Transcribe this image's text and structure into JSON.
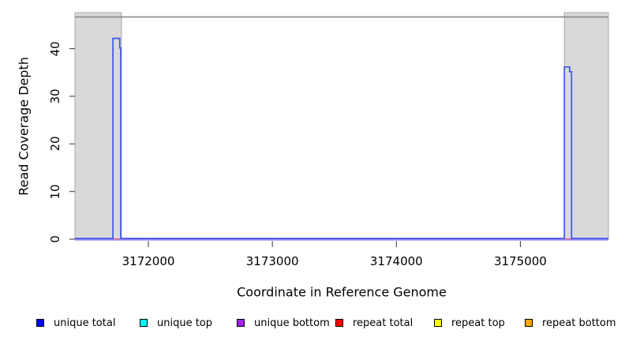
{
  "chart_data": {
    "type": "line",
    "title": "",
    "xlabel": "Coordinate in Reference Genome",
    "ylabel": "Read Coverage Depth",
    "xlim": [
      3171408,
      3175710
    ],
    "ylim": [
      0,
      47
    ],
    "xticks": [
      "3172000",
      "3173000",
      "3174000",
      "3175000"
    ],
    "xtick_values": [
      3172000,
      3173000,
      3174000,
      3175000
    ],
    "yticks": [
      "0",
      "10",
      "20",
      "30",
      "40"
    ],
    "ytick_values": [
      0,
      10,
      20,
      30,
      40
    ],
    "grid": "off",
    "legend_position": "bottom",
    "shaded_regions": [
      {
        "x0": 3171408,
        "x1": 3171783,
        "fill": "#d9d9d9",
        "edge": "#a8a8a8"
      },
      {
        "x0": 3175355,
        "x1": 3175710,
        "fill": "#d9d9d9",
        "edge": "#a8a8a8"
      }
    ],
    "top_border_color": "#8c8c8c",
    "series": [
      {
        "name": "unique top",
        "color": "#00FFFF",
        "line_color": "#00FFFF",
        "dy": 0,
        "points": [
          [
            3171408,
            0
          ],
          [
            3175710,
            0
          ]
        ]
      },
      {
        "name": "repeat top",
        "color": "#FFFF00",
        "line_color": "#FFFF00",
        "dy": 0,
        "points": [
          [
            3171408,
            0
          ],
          [
            3175710,
            0
          ]
        ]
      },
      {
        "name": "repeat bottom",
        "color": "#FFA500",
        "line_color": "#FFA500",
        "dy": 0,
        "points": [
          [
            3171408,
            0
          ],
          [
            3175710,
            0
          ]
        ]
      },
      {
        "name": "repeat total",
        "color": "#FF0000",
        "line_color": "#F4554B",
        "dy": 0,
        "points": [
          [
            3171408,
            0
          ],
          [
            3175710,
            0
          ]
        ]
      },
      {
        "name": "unique total",
        "color": "#0000FF",
        "line_color": "#3C55EC",
        "dy": -0.9,
        "points": [
          [
            3171408,
            0
          ],
          [
            3171714,
            0
          ],
          [
            3171714,
            42
          ],
          [
            3171769,
            42
          ],
          [
            3171769,
            40
          ],
          [
            3171777,
            40
          ],
          [
            3171777,
            0
          ],
          [
            3175355,
            0
          ],
          [
            3175355,
            36
          ],
          [
            3175397,
            36
          ],
          [
            3175397,
            35
          ],
          [
            3175413,
            35
          ],
          [
            3175413,
            0
          ],
          [
            3175710,
            0
          ]
        ]
      },
      {
        "name": "unique bottom",
        "color": "#A020F0",
        "line_color": "#A18BF5",
        "dy": 0.9,
        "points": [
          [
            3171408,
            0
          ],
          [
            3175710,
            0
          ]
        ]
      }
    ]
  },
  "legend": {
    "items": [
      {
        "label": "unique total",
        "color": "#0000FF"
      },
      {
        "label": "unique top",
        "color": "#00FFFF"
      },
      {
        "label": "unique bottom",
        "color": "#A020F0"
      },
      {
        "label": "repeat total",
        "color": "#FF0000"
      },
      {
        "label": "repeat top",
        "color": "#FFFF00"
      },
      {
        "label": "repeat bottom",
        "color": "#FFA500"
      }
    ]
  }
}
